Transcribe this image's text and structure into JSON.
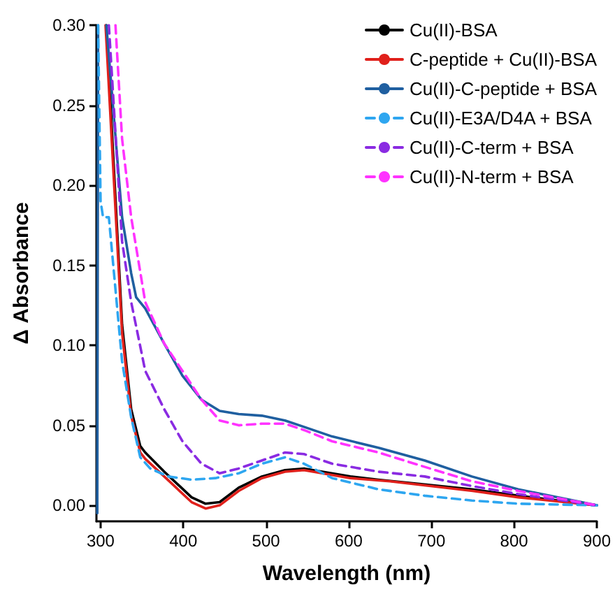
{
  "chart_data": {
    "type": "line",
    "xlabel": "Wavelength (nm)",
    "ylabel": "Δ Absorbance",
    "xlim": [
      295,
      900
    ],
    "ylim": [
      -0.01,
      0.3
    ],
    "xticks": [
      300,
      400,
      500,
      600,
      700,
      800,
      900
    ],
    "yticks": [
      {
        "value": 0,
        "label": "0.00"
      },
      0.05,
      {
        "value": 0.1,
        "label": "0.10"
      },
      0.15,
      {
        "value": 0.2,
        "label": "0.20"
      },
      0.25,
      {
        "value": 0.3,
        "label": "0.30"
      }
    ],
    "grid": false,
    "legend": "top right",
    "marker": "none",
    "series": [
      {
        "name": "Cu(II)-BSA",
        "color": "#000000",
        "line_style": "solid",
        "x": [
          307,
          326,
          337,
          348,
          354,
          377,
          410,
          427,
          444,
          467,
          495,
          523,
          546,
          568,
          602,
          636,
          692,
          749,
          805,
          900
        ],
        "values": [
          0.3,
          0.113,
          0.06,
          0.037,
          0.033,
          0.021,
          0.005,
          0.001,
          0.002,
          0.011,
          0.018,
          0.022,
          0.023,
          0.021,
          0.018,
          0.016,
          0.013,
          0.01,
          0.006,
          0
        ]
      },
      {
        "name": "C-peptide + Cu(II)-BSA",
        "color": "#e0201b",
        "line_style": "solid",
        "x": [
          306,
          326,
          337,
          348,
          354,
          377,
          410,
          427,
          444,
          467,
          495,
          523,
          546,
          568,
          602,
          650,
          750,
          805,
          900
        ],
        "values": [
          0.3,
          0.108,
          0.056,
          0.033,
          0.029,
          0.018,
          0.002,
          -0.002,
          0,
          0.009,
          0.017,
          0.021,
          0.022,
          0.02,
          0.017,
          0.015,
          0.009,
          0.005,
          0
        ]
      },
      {
        "name": "Cu(II)-C-peptide + BSA",
        "color": "#1f5fa0",
        "line_style": "solid",
        "x": [
          296,
          297,
          302,
          307,
          326,
          337,
          343,
          354,
          377,
          399,
          422,
          444,
          467,
          495,
          523,
          546,
          580,
          636,
          692,
          749,
          805,
          900
        ],
        "values": [
          -0.005,
          0.3,
          null,
          0.3,
          0.18,
          0.145,
          0.13,
          0.123,
          0.101,
          0.081,
          0.066,
          0.059,
          0.057,
          0.056,
          0.053,
          0.049,
          0.043,
          0.036,
          0.028,
          0.018,
          0.01,
          0
        ]
      },
      {
        "name": "Cu(II)-E3A/D4A + BSA",
        "color": "#2ea6f0",
        "line_style": "dashed",
        "x": [
          297,
          300,
          303,
          310,
          326,
          337,
          348,
          360,
          382,
          410,
          439,
          467,
          495,
          523,
          546,
          580,
          636,
          692,
          749,
          805,
          900
        ],
        "values": [
          0.3,
          0.19,
          0.18,
          0.18,
          0.09,
          0.055,
          0.03,
          0.023,
          0.018,
          0.016,
          0.017,
          0.02,
          0.026,
          0.03,
          0.026,
          0.017,
          0.01,
          0.006,
          0.003,
          0.001,
          0
        ]
      },
      {
        "name": "Cu(II)-C-term + BSA",
        "color": "#8a2be2",
        "line_style": "dashed",
        "x": [
          310,
          326,
          337,
          354,
          377,
          399,
          422,
          444,
          467,
          495,
          523,
          546,
          580,
          636,
          692,
          749,
          805,
          900
        ],
        "values": [
          0.3,
          0.165,
          0.127,
          0.084,
          0.06,
          0.04,
          0.026,
          0.02,
          0.023,
          0.028,
          0.033,
          0.032,
          0.026,
          0.021,
          0.018,
          0.012,
          0.007,
          0
        ]
      },
      {
        "name": "Cu(II)-N-term + BSA",
        "color": "#ff33ff",
        "line_style": "dashed",
        "x": [
          318,
          326,
          337,
          354,
          377,
          399,
          422,
          444,
          467,
          495,
          523,
          546,
          580,
          636,
          692,
          749,
          805,
          900
        ],
        "values": [
          0.3,
          0.229,
          0.18,
          0.127,
          0.101,
          0.084,
          0.066,
          0.053,
          0.05,
          0.051,
          0.051,
          0.047,
          0.04,
          0.033,
          0.024,
          0.015,
          0.009,
          0
        ]
      }
    ]
  }
}
